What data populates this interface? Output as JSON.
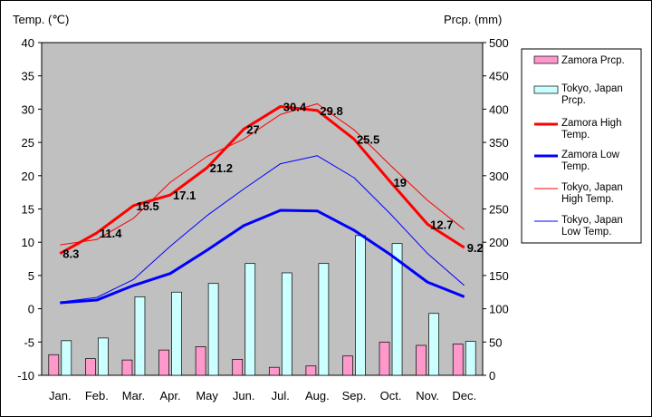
{
  "chart_data": {
    "type": "bar+line",
    "left_axis": {
      "title": "Temp. (℃)",
      "min": -10,
      "max": 40,
      "step": 5
    },
    "right_axis": {
      "title": "Prcp. (mm)",
      "min": 0,
      "max": 500,
      "step": 50
    },
    "grid": false,
    "legend_position": "right",
    "categories": [
      "Jan.",
      "Feb.",
      "Mar.",
      "Apr.",
      "May",
      "Jun.",
      "Jul.",
      "Aug.",
      "Sep.",
      "Oct.",
      "Nov.",
      "Dec."
    ],
    "bar_series": [
      {
        "name": "Zamora Prcp.",
        "color": "#ff99cc",
        "axis": "right",
        "values": [
          31,
          25,
          23,
          38,
          43,
          24,
          12,
          14,
          29,
          50,
          45,
          47
        ]
      },
      {
        "name": "Tokyo, Japan Prcp.",
        "color": "#ccffff",
        "axis": "right",
        "values": [
          52,
          56,
          118,
          125,
          138,
          168,
          154,
          168,
          210,
          198,
          93,
          51
        ]
      }
    ],
    "line_series": [
      {
        "name": "Zamora High Temp.",
        "color": "#ff0000",
        "width": 3,
        "axis": "left",
        "values": [
          8.3,
          11.4,
          15.5,
          17.1,
          21.2,
          27,
          30.4,
          29.8,
          25.5,
          19,
          12.7,
          9.2
        ]
      },
      {
        "name": "Zamora Low Temp.",
        "color": "#0000ff",
        "width": 3,
        "axis": "left",
        "values": [
          0.9,
          1.3,
          3.5,
          5.3,
          8.8,
          12.5,
          14.8,
          14.7,
          11.8,
          8.1,
          4,
          1.8
        ]
      },
      {
        "name": "Tokyo, Japan High Temp.",
        "color": "#ff0000",
        "width": 1,
        "axis": "left",
        "values": [
          9.6,
          10.4,
          13.6,
          19,
          22.9,
          25.5,
          29.2,
          30.8,
          26.9,
          21.5,
          16.3,
          11.9
        ]
      },
      {
        "name": "Tokyo, Japan Low Temp.",
        "color": "#0000ff",
        "width": 1,
        "axis": "left",
        "values": [
          1,
          1.7,
          4.4,
          9.4,
          14,
          18,
          21.8,
          23,
          19.7,
          14.2,
          8.3,
          3.5
        ]
      }
    ],
    "data_labels": {
      "series": "Zamora High Temp.",
      "texts": [
        "8.3",
        "11.4",
        "15.5",
        "17.1",
        "21.2",
        "27",
        "30.4",
        "29.8",
        "25.5",
        "19",
        "12.7",
        "9.2"
      ]
    },
    "legend_entries": [
      {
        "lines": [
          "Zamora Prcp."
        ],
        "kind": "bar",
        "color": "#ff99cc"
      },
      {
        "lines": [
          "Tokyo, Japan",
          "Prcp."
        ],
        "kind": "bar",
        "color": "#ccffff"
      },
      {
        "lines": [
          "Zamora High",
          "Temp."
        ],
        "kind": "line",
        "color": "#ff0000",
        "width": 3
      },
      {
        "lines": [
          "Zamora Low",
          "Temp."
        ],
        "kind": "line",
        "color": "#0000ff",
        "width": 3
      },
      {
        "lines": [
          "Tokyo, Japan",
          "High Temp."
        ],
        "kind": "line",
        "color": "#ff0000",
        "width": 1
      },
      {
        "lines": [
          "Tokyo, Japan",
          "Low Temp."
        ],
        "kind": "line",
        "color": "#0000ff",
        "width": 1
      }
    ],
    "plot_background": "#c0c0c0"
  }
}
